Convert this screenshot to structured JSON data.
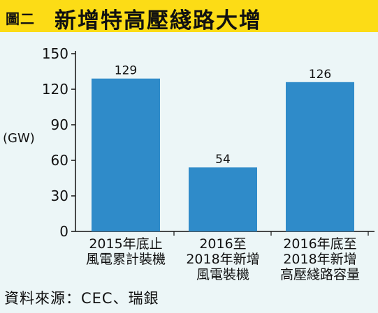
{
  "header": {
    "figure_label": "圖二",
    "title": "新增特高壓綫路大增"
  },
  "chart_data": {
    "type": "bar",
    "title": "新增特高壓綫路大增",
    "ylabel": "(GW)",
    "xlabel": "",
    "ylim": [
      0,
      150
    ],
    "yticks": [
      "0",
      "30",
      "60",
      "90",
      "120",
      "150"
    ],
    "categories": [
      [
        "2015年底止",
        "風電累計裝機"
      ],
      [
        "2016至",
        "2018年新增",
        "風電裝機"
      ],
      [
        "2016年底至",
        "2018年新增",
        "高壓綫路容量"
      ]
    ],
    "values": [
      129,
      54,
      126
    ],
    "bar_color": "#2f8bc9",
    "grid": false
  },
  "footer": {
    "source": "資料來源：CEC、瑞銀"
  }
}
